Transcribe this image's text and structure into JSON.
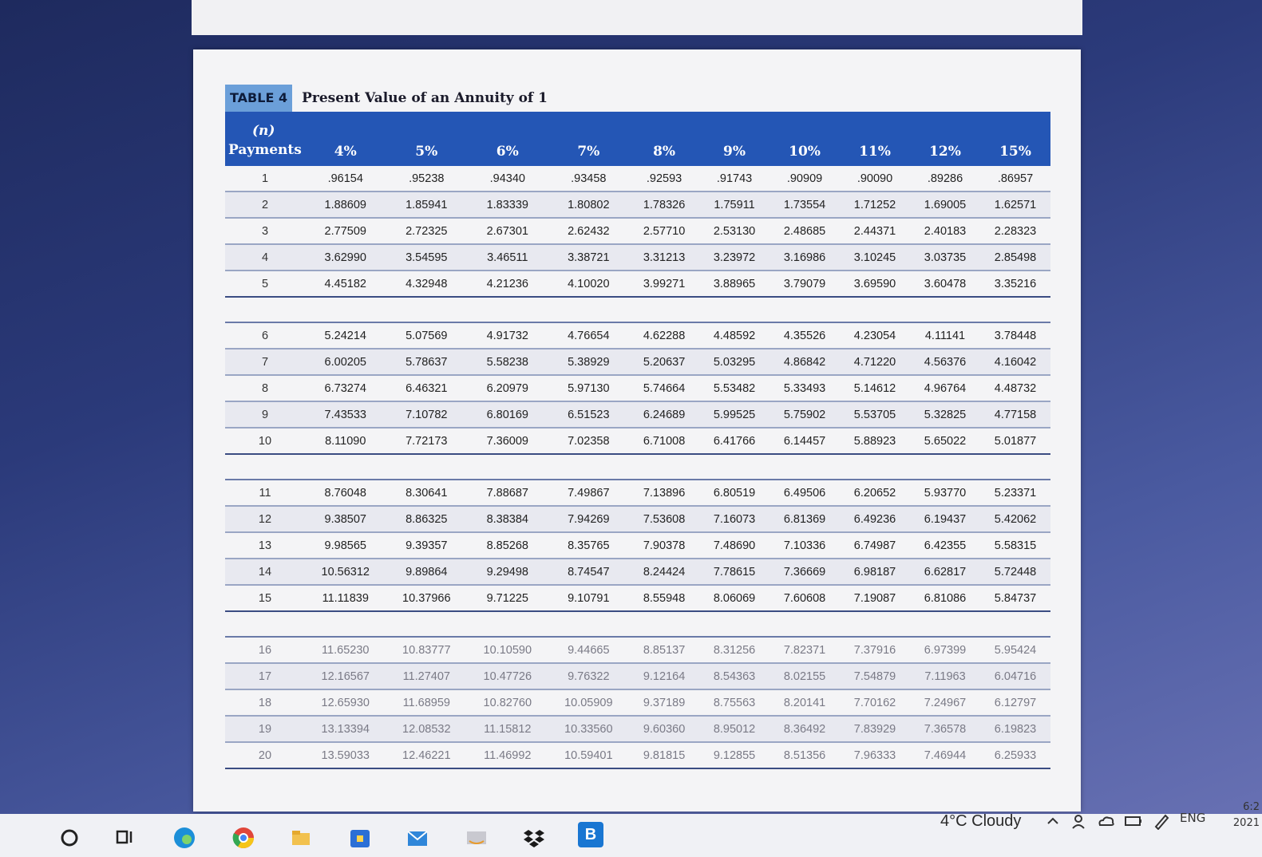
{
  "table": {
    "tag": "TABLE 4",
    "title": "Present Value of an Annuity of 1",
    "header": {
      "n_top": "(n)",
      "n_bottom": "Payments",
      "rates": [
        "4%",
        "5%",
        "6%",
        "7%",
        "8%",
        "9%",
        "10%",
        "11%",
        "12%",
        "15%"
      ]
    },
    "blocks": [
      [
        [
          "1",
          ".96154",
          ".95238",
          ".94340",
          ".93458",
          ".92593",
          ".91743",
          ".90909",
          ".90090",
          ".89286",
          ".86957"
        ],
        [
          "2",
          "1.88609",
          "1.85941",
          "1.83339",
          "1.80802",
          "1.78326",
          "1.75911",
          "1.73554",
          "1.71252",
          "1.69005",
          "1.62571"
        ],
        [
          "3",
          "2.77509",
          "2.72325",
          "2.67301",
          "2.62432",
          "2.57710",
          "2.53130",
          "2.48685",
          "2.44371",
          "2.40183",
          "2.28323"
        ],
        [
          "4",
          "3.62990",
          "3.54595",
          "3.46511",
          "3.38721",
          "3.31213",
          "3.23972",
          "3.16986",
          "3.10245",
          "3.03735",
          "2.85498"
        ],
        [
          "5",
          "4.45182",
          "4.32948",
          "4.21236",
          "4.10020",
          "3.99271",
          "3.88965",
          "3.79079",
          "3.69590",
          "3.60478",
          "3.35216"
        ]
      ],
      [
        [
          "6",
          "5.24214",
          "5.07569",
          "4.91732",
          "4.76654",
          "4.62288",
          "4.48592",
          "4.35526",
          "4.23054",
          "4.11141",
          "3.78448"
        ],
        [
          "7",
          "6.00205",
          "5.78637",
          "5.58238",
          "5.38929",
          "5.20637",
          "5.03295",
          "4.86842",
          "4.71220",
          "4.56376",
          "4.16042"
        ],
        [
          "8",
          "6.73274",
          "6.46321",
          "6.20979",
          "5.97130",
          "5.74664",
          "5.53482",
          "5.33493",
          "5.14612",
          "4.96764",
          "4.48732"
        ],
        [
          "9",
          "7.43533",
          "7.10782",
          "6.80169",
          "6.51523",
          "6.24689",
          "5.99525",
          "5.75902",
          "5.53705",
          "5.32825",
          "4.77158"
        ],
        [
          "10",
          "8.11090",
          "7.72173",
          "7.36009",
          "7.02358",
          "6.71008",
          "6.41766",
          "6.14457",
          "5.88923",
          "5.65022",
          "5.01877"
        ]
      ],
      [
        [
          "11",
          "8.76048",
          "8.30641",
          "7.88687",
          "7.49867",
          "7.13896",
          "6.80519",
          "6.49506",
          "6.20652",
          "5.93770",
          "5.23371"
        ],
        [
          "12",
          "9.38507",
          "8.86325",
          "8.38384",
          "7.94269",
          "7.53608",
          "7.16073",
          "6.81369",
          "6.49236",
          "6.19437",
          "5.42062"
        ],
        [
          "13",
          "9.98565",
          "9.39357",
          "8.85268",
          "8.35765",
          "7.90378",
          "7.48690",
          "7.10336",
          "6.74987",
          "6.42355",
          "5.58315"
        ],
        [
          "14",
          "10.56312",
          "9.89864",
          "9.29498",
          "8.74547",
          "8.24424",
          "7.78615",
          "7.36669",
          "6.98187",
          "6.62817",
          "5.72448"
        ],
        [
          "15",
          "11.11839",
          "10.37966",
          "9.71225",
          "9.10791",
          "8.55948",
          "8.06069",
          "7.60608",
          "7.19087",
          "6.81086",
          "5.84737"
        ]
      ],
      [
        [
          "16",
          "11.65230",
          "10.83777",
          "10.10590",
          "9.44665",
          "8.85137",
          "8.31256",
          "7.82371",
          "7.37916",
          "6.97399",
          "5.95424"
        ],
        [
          "17",
          "12.16567",
          "11.27407",
          "10.47726",
          "9.76322",
          "9.12164",
          "8.54363",
          "8.02155",
          "7.54879",
          "7.11963",
          "6.04716"
        ],
        [
          "18",
          "12.65930",
          "11.68959",
          "10.82760",
          "10.05909",
          "9.37189",
          "8.75563",
          "8.20141",
          "7.70162",
          "7.24967",
          "6.12797"
        ],
        [
          "19",
          "13.13394",
          "12.08532",
          "11.15812",
          "10.33560",
          "9.60360",
          "8.95012",
          "8.36492",
          "7.83929",
          "7.36578",
          "6.19823"
        ],
        [
          "20",
          "13.59033",
          "12.46221",
          "11.46992",
          "10.59401",
          "9.81815",
          "9.12855",
          "8.51356",
          "7.96333",
          "7.46944",
          "6.25933"
        ]
      ]
    ]
  },
  "taskbar": {
    "weather": "4°C  Cloudy",
    "language": "ENG",
    "clock_time": "6:2",
    "clock_date": "2021",
    "colors": {
      "edge": "#1c8fd8",
      "chrome": "#e0463a",
      "store": "#2b6fd6",
      "mail": "#2f86d9",
      "bing": "#1976d2"
    },
    "icons": [
      "search-icon",
      "task-view-icon",
      "edge-icon",
      "chrome-icon",
      "file-explorer-icon",
      "store-icon",
      "mail-icon",
      "amazon-icon",
      "dropbox-icon",
      "b-app-icon"
    ],
    "b_label": "B"
  }
}
